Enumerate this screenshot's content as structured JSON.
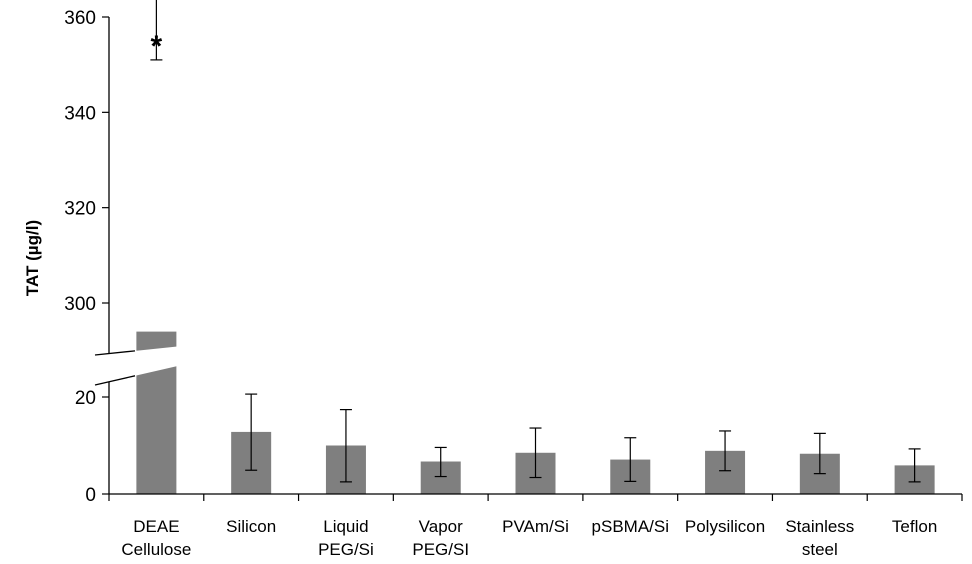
{
  "chart_data": {
    "type": "bar",
    "title": "",
    "xlabel": "",
    "ylabel": "TAT (µg/l)",
    "axis_break": true,
    "lower_ylim": [
      0,
      25
    ],
    "upper_ylim": [
      290,
      360
    ],
    "lower_ticks": [
      "0",
      "20"
    ],
    "upper_ticks": [
      "300",
      "320",
      "340",
      "360"
    ],
    "categories": [
      [
        "DEAE",
        "Cellulose"
      ],
      [
        "Silicon"
      ],
      [
        "Liquid",
        "PEG/Si"
      ],
      [
        "Vapor",
        "PEG/SI"
      ],
      [
        "PVAm/Si"
      ],
      [
        "pSBMA/Si"
      ],
      [
        "Polysilicon"
      ],
      [
        "Stainless",
        "steel"
      ],
      [
        "Teflon"
      ]
    ],
    "values": [
      294,
      12.8,
      10.0,
      6.7,
      8.5,
      7.1,
      8.9,
      8.3,
      5.9
    ],
    "error_low": [
      289,
      4.9,
      2.5,
      3.6,
      3.4,
      2.6,
      4.8,
      4.2,
      2.5
    ],
    "error_high": [
      351,
      20.6,
      17.4,
      9.6,
      13.6,
      11.6,
      13.0,
      12.5,
      9.3
    ],
    "annotation": {
      "category_index": 0,
      "text": "*"
    },
    "colors": {
      "bar": "#7f7f7f",
      "axis": "#000000",
      "error": "#000000"
    },
    "grid": false,
    "legend": "none"
  }
}
